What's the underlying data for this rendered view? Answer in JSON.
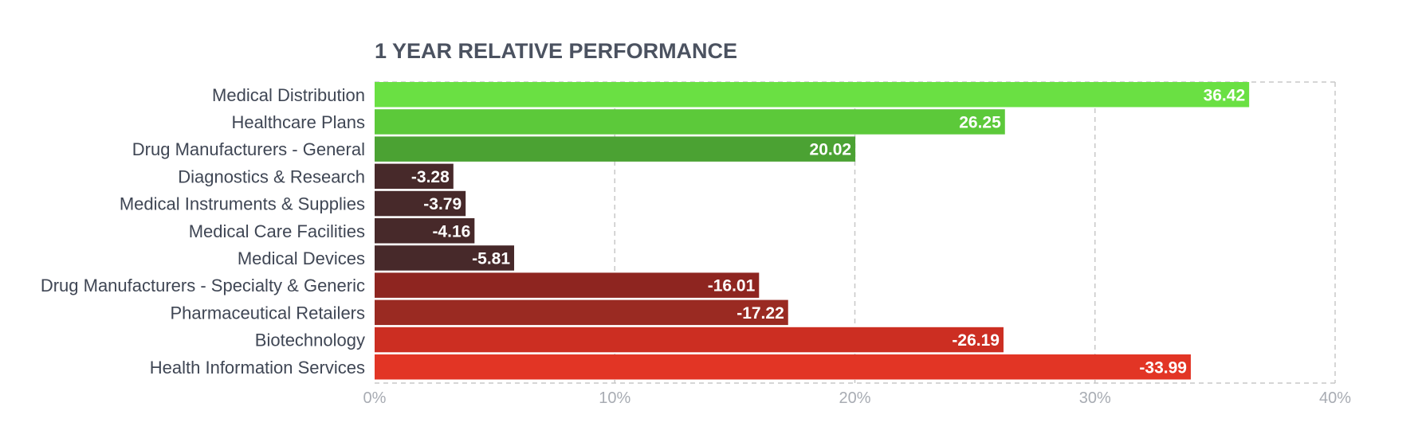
{
  "chart_data": {
    "type": "bar",
    "orientation": "horizontal",
    "title": "1 YEAR RELATIVE PERFORMANCE",
    "xlabel": "",
    "ylabel": "",
    "xlim": [
      0,
      40
    ],
    "x_tick_values": [
      0,
      10,
      20,
      30,
      40
    ],
    "x_tick_labels": [
      "0%",
      "10%",
      "20%",
      "30%",
      "40%"
    ],
    "grid": true,
    "legend": "none",
    "bar_length": "absolute value",
    "categories": [
      "Medical Distribution",
      "Healthcare Plans",
      "Drug Manufacturers - General",
      "Diagnostics & Research",
      "Medical Instruments & Supplies",
      "Medical Care Facilities",
      "Medical Devices",
      "Drug Manufacturers - Specialty & Generic",
      "Pharmaceutical Retailers",
      "Biotechnology",
      "Health Information Services"
    ],
    "values": [
      36.42,
      26.25,
      20.02,
      -3.28,
      -3.79,
      -4.16,
      -5.81,
      -16.01,
      -17.22,
      -26.19,
      -33.99
    ],
    "value_labels": [
      "36.42",
      "26.25",
      "20.02",
      "-3.28",
      "-3.79",
      "-4.16",
      "-5.81",
      "-16.01",
      "-17.22",
      "-26.19",
      "-33.99"
    ],
    "colors": [
      "#6ae043",
      "#5cc93a",
      "#4ba233",
      "#47292a",
      "#47292a",
      "#47292a",
      "#47292a",
      "#8e2520",
      "#9a2a22",
      "#cc2e22",
      "#e23525"
    ]
  }
}
